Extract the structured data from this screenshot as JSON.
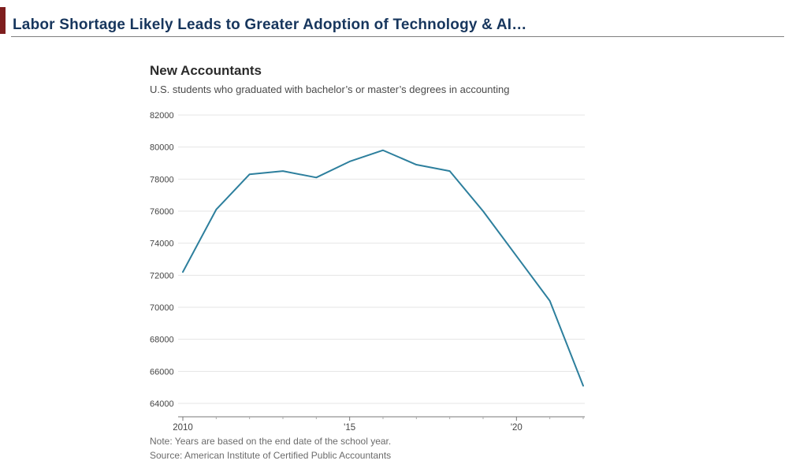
{
  "header": {
    "title": "Labor Shortage Likely Leads to Greater Adoption of Technology & AI…"
  },
  "colors": {
    "title_text": "#17365d",
    "accent_bar": "#7e1e1e",
    "line": "#2d7f9d",
    "gridline": "#e4e4e4",
    "axis": "#777777",
    "tick_minor": "#aaaaaa",
    "label_text": "#444444"
  },
  "chart_data": {
    "type": "line",
    "title": "New Accountants",
    "subtitle": "U.S. students who graduated with bachelor’s or master’s degrees in accounting",
    "x": [
      2010,
      2011,
      2012,
      2013,
      2014,
      2015,
      2016,
      2017,
      2018,
      2019,
      2020,
      2021,
      2022
    ],
    "values": [
      72200,
      76100,
      78300,
      78500,
      78100,
      79100,
      79800,
      78900,
      78500,
      76000,
      73200,
      70400,
      65100
    ],
    "ylim": [
      64000,
      82000
    ],
    "yticks": [
      64000,
      66000,
      68000,
      70000,
      72000,
      74000,
      76000,
      78000,
      80000,
      82000
    ],
    "xtick_labels": [
      {
        "year": 2010,
        "label": "2010"
      },
      {
        "year": 2015,
        "label": "'15"
      },
      {
        "year": 2020,
        "label": "'20"
      }
    ],
    "grid": "horizontal",
    "legend": "none",
    "note": "Note: Years are based on the end date of the school year.",
    "source": "Source: American Institute of Certified Public Accountants"
  }
}
